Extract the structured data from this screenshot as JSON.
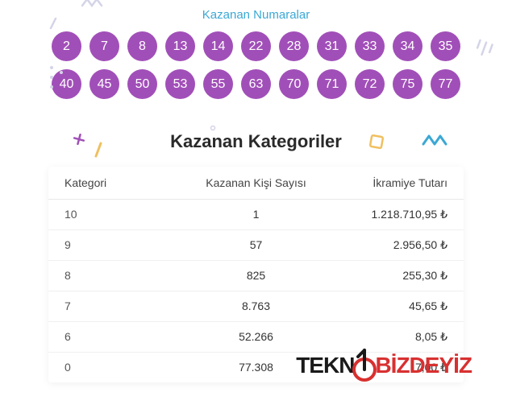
{
  "numbers": {
    "title": "Kazanan Numaralar",
    "ball_color": "#a14fb8",
    "ball_text_color": "#ffffff",
    "values": [
      2,
      7,
      8,
      13,
      14,
      22,
      28,
      31,
      33,
      34,
      35,
      40,
      45,
      50,
      53,
      55,
      63,
      70,
      71,
      72,
      75,
      77
    ]
  },
  "categories": {
    "title": "Kazanan Kategoriler",
    "headers": {
      "category": "Kategori",
      "winners": "Kazanan Kişi Sayısı",
      "prize": "İkramiye Tutarı"
    },
    "rows": [
      {
        "cat": "10",
        "count": "1",
        "prize": "1.218.710,95 ₺"
      },
      {
        "cat": "9",
        "count": "57",
        "prize": "2.956,50 ₺"
      },
      {
        "cat": "8",
        "count": "825",
        "prize": "255,30 ₺"
      },
      {
        "cat": "7",
        "count": "8.763",
        "prize": "45,65 ₺"
      },
      {
        "cat": "6",
        "count": "52.266",
        "prize": "8,05 ₺"
      },
      {
        "cat": "0",
        "count": "77.308",
        "prize": "7,00 ₺"
      }
    ]
  },
  "watermark": {
    "part1": "TEKN",
    "part2": "BİZDEYİZ",
    "color_black": "#1a1a1a",
    "color_red": "#d83030"
  },
  "decorations": {
    "zigzag_color_light": "#d4d4e8",
    "zigzag_color_cyan": "#3ba8d4",
    "plus_color": "#a14fb8",
    "slash_color_yellow": "#f0c060",
    "rect_color": "#f0c060"
  }
}
